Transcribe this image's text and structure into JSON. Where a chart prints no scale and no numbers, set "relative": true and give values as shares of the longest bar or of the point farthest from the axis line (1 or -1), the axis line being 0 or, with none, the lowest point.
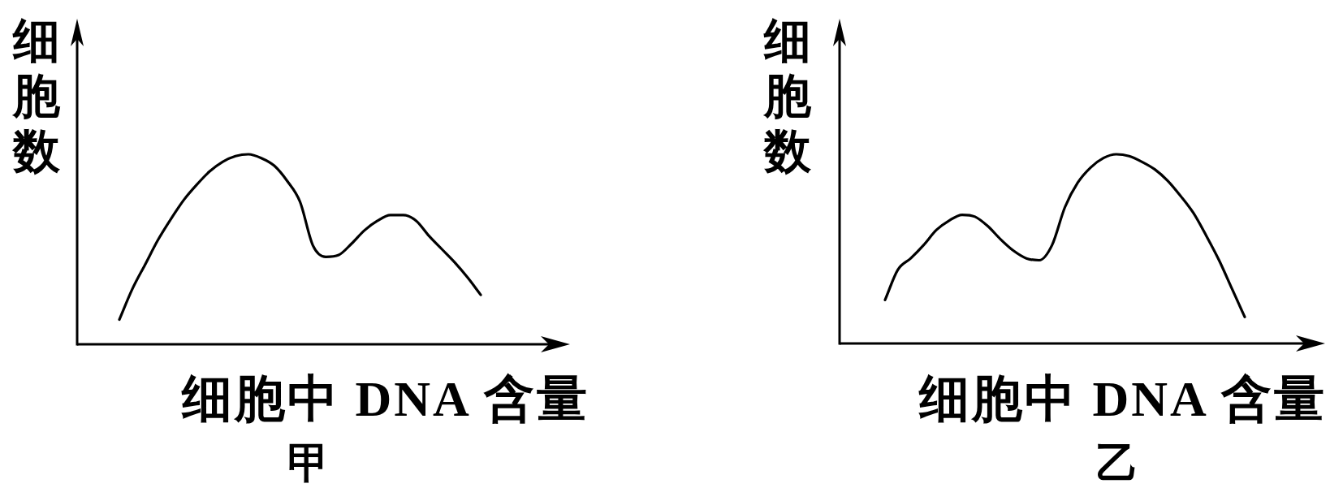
{
  "chart_data": [
    {
      "type": "line",
      "relative": true,
      "title": "甲",
      "xlabel": "细胞中 DNA 含量",
      "ylabel": "细胞数",
      "categories": [
        null,
        null,
        null,
        null,
        null,
        null,
        null,
        null,
        null,
        null,
        null,
        null,
        null,
        null,
        null,
        null,
        null,
        null,
        null,
        null,
        null,
        null,
        null,
        null,
        null,
        null,
        null,
        null,
        null
      ],
      "series": [
        {
          "color": "#000000",
          "values": [
            0.13,
            0.29,
            0.42,
            0.55,
            0.66,
            0.76,
            0.84,
            0.91,
            0.96,
            0.99,
            1.0,
            0.98,
            0.94,
            0.86,
            0.75,
            0.52,
            0.46,
            0.47,
            0.53,
            0.6,
            0.65,
            0.68,
            0.68,
            0.65,
            0.57,
            0.5,
            0.43,
            0.35,
            0.26
          ]
        }
      ]
    },
    {
      "type": "line",
      "relative": true,
      "title": "乙",
      "xlabel": "细胞中 DNA 含量",
      "ylabel": "细胞数",
      "categories": [
        null,
        null,
        null,
        null,
        null,
        null,
        null,
        null,
        null,
        null,
        null,
        null,
        null,
        null,
        null,
        null,
        null,
        null,
        null,
        null,
        null,
        null,
        null,
        null,
        null,
        null,
        null,
        null,
        null
      ],
      "series": [
        {
          "color": "#000000",
          "values": [
            0.23,
            0.39,
            0.45,
            0.52,
            0.6,
            0.65,
            0.68,
            0.67,
            0.62,
            0.55,
            0.49,
            0.45,
            0.44,
            0.52,
            0.72,
            0.85,
            0.93,
            0.98,
            1.0,
            0.99,
            0.96,
            0.92,
            0.86,
            0.78,
            0.69,
            0.57,
            0.44,
            0.29,
            0.14
          ]
        }
      ]
    }
  ]
}
